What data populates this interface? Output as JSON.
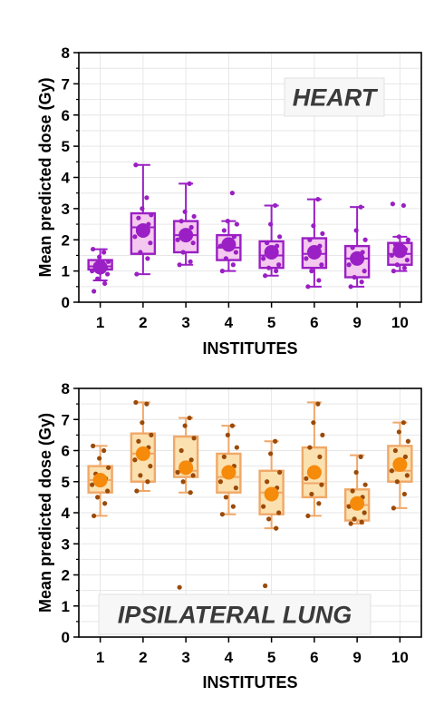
{
  "chart_data": [
    {
      "type": "box",
      "panel_label": "HEART",
      "xlabel": "INSTITUTES",
      "ylabel": "Mean predicted dose (Gy)",
      "ylim": [
        0,
        8
      ],
      "yticks": [
        "0",
        "1",
        "2",
        "3",
        "4",
        "5",
        "6",
        "7",
        "8"
      ],
      "grid": true,
      "colors": {
        "stroke": "#9a1fc4",
        "fill": "#f4c8ef",
        "mean": "#9a1fc4",
        "points": "#9a1fc4"
      },
      "categories": [
        "1",
        "2",
        "3",
        "4",
        "5",
        "6",
        "9",
        "10"
      ],
      "boxes": [
        {
          "whisker_low": 0.7,
          "q1": 1.05,
          "median": 1.15,
          "q3": 1.35,
          "whisker_high": 1.7,
          "mean": 1.12,
          "points": [
            0.35,
            0.6,
            0.75,
            0.9,
            1.0,
            1.05,
            1.1,
            1.2,
            1.3,
            1.45,
            1.6,
            1.7
          ]
        },
        {
          "whisker_low": 0.9,
          "q1": 1.55,
          "median": 2.4,
          "q3": 2.85,
          "whisker_high": 4.4,
          "mean": 2.3,
          "points": [
            0.9,
            1.4,
            1.6,
            1.9,
            2.1,
            2.3,
            2.5,
            2.7,
            2.8,
            3.0,
            3.35,
            4.4
          ]
        },
        {
          "whisker_low": 1.2,
          "q1": 1.6,
          "median": 2.15,
          "q3": 2.6,
          "whisker_high": 3.8,
          "mean": 2.15,
          "points": [
            1.2,
            1.3,
            1.6,
            1.9,
            2.0,
            2.2,
            2.4,
            2.6,
            2.75,
            2.9,
            3.8
          ]
        },
        {
          "whisker_low": 1.0,
          "q1": 1.35,
          "median": 1.75,
          "q3": 2.15,
          "whisker_high": 2.6,
          "mean": 1.85,
          "points": [
            1.0,
            1.2,
            1.4,
            1.6,
            1.8,
            1.95,
            2.1,
            2.3,
            2.5,
            2.6,
            3.5
          ]
        },
        {
          "whisker_low": 0.85,
          "q1": 1.1,
          "median": 1.5,
          "q3": 1.95,
          "whisker_high": 3.1,
          "mean": 1.6,
          "points": [
            0.85,
            1.0,
            1.1,
            1.2,
            1.4,
            1.6,
            1.8,
            1.9,
            2.1,
            2.5,
            3.1
          ]
        },
        {
          "whisker_low": 0.5,
          "q1": 1.1,
          "median": 1.55,
          "q3": 2.05,
          "whisker_high": 3.3,
          "mean": 1.6,
          "points": [
            0.5,
            0.7,
            1.0,
            1.2,
            1.4,
            1.6,
            1.8,
            2.0,
            2.2,
            2.45,
            3.3
          ]
        },
        {
          "whisker_low": 0.5,
          "q1": 0.8,
          "median": 1.4,
          "q3": 1.8,
          "whisker_high": 3.05,
          "mean": 1.4,
          "points": [
            0.5,
            0.65,
            0.8,
            1.0,
            1.2,
            1.4,
            1.6,
            1.75,
            2.0,
            2.3,
            3.05
          ]
        },
        {
          "whisker_low": 1.0,
          "q1": 1.2,
          "median": 1.55,
          "q3": 1.9,
          "whisker_high": 2.1,
          "mean": 1.65,
          "points": [
            1.0,
            1.1,
            1.2,
            1.35,
            1.5,
            1.6,
            1.7,
            1.85,
            2.0,
            2.1,
            3.1,
            3.15
          ]
        }
      ]
    },
    {
      "type": "box",
      "panel_label": "IPSILATERAL LUNG",
      "xlabel": "INSTITUTES",
      "ylabel": "Mean predicted dose (Gy)",
      "ylim": [
        0,
        8
      ],
      "yticks": [
        "0",
        "1",
        "2",
        "3",
        "4",
        "5",
        "6",
        "7",
        "8"
      ],
      "grid": true,
      "colors": {
        "stroke": "#f0a868",
        "fill": "#fbe1b0",
        "mean": "#f58a0b",
        "points": "#9a4a08"
      },
      "categories": [
        "1",
        "2",
        "3",
        "4",
        "5",
        "6",
        "9",
        "10"
      ],
      "boxes": [
        {
          "whisker_low": 3.9,
          "q1": 4.65,
          "median": 5.05,
          "q3": 5.5,
          "whisker_high": 6.15,
          "mean": 5.05,
          "points": [
            3.9,
            4.3,
            4.5,
            4.7,
            4.9,
            5.0,
            5.1,
            5.25,
            5.45,
            5.75,
            6.0,
            6.15
          ]
        },
        {
          "whisker_low": 4.7,
          "q1": 5.0,
          "median": 5.9,
          "q3": 6.55,
          "whisker_high": 7.55,
          "mean": 5.9,
          "points": [
            4.7,
            5.0,
            5.2,
            5.5,
            5.7,
            5.9,
            6.1,
            6.3,
            6.5,
            6.9,
            7.5,
            7.55
          ]
        },
        {
          "whisker_low": 4.65,
          "q1": 5.15,
          "median": 5.35,
          "q3": 6.45,
          "whisker_high": 7.05,
          "mean": 5.45,
          "points": [
            1.6,
            4.65,
            5.0,
            5.2,
            5.3,
            5.5,
            5.7,
            6.0,
            6.4,
            6.8,
            7.05
          ]
        },
        {
          "whisker_low": 3.95,
          "q1": 4.65,
          "median": 5.15,
          "q3": 5.9,
          "whisker_high": 6.8,
          "mean": 5.3,
          "points": [
            3.95,
            4.2,
            4.5,
            4.8,
            5.0,
            5.2,
            5.5,
            5.8,
            6.1,
            6.5,
            6.8
          ]
        },
        {
          "whisker_low": 3.5,
          "q1": 3.95,
          "median": 4.65,
          "q3": 5.35,
          "whisker_high": 6.3,
          "mean": 4.6,
          "points": [
            1.65,
            3.5,
            3.8,
            4.0,
            4.2,
            4.5,
            4.8,
            5.0,
            5.3,
            5.9,
            6.3
          ]
        },
        {
          "whisker_low": 3.9,
          "q1": 4.5,
          "median": 4.95,
          "q3": 6.1,
          "whisker_high": 7.55,
          "mean": 5.3,
          "points": [
            3.9,
            4.3,
            4.6,
            4.9,
            5.1,
            5.4,
            5.8,
            6.1,
            6.5,
            6.9,
            7.5
          ]
        },
        {
          "whisker_low": 3.65,
          "q1": 3.75,
          "median": 4.25,
          "q3": 4.75,
          "whisker_high": 5.85,
          "mean": 4.3,
          "points": [
            3.65,
            3.7,
            3.8,
            4.0,
            4.2,
            4.35,
            4.5,
            4.7,
            4.9,
            5.3,
            5.8
          ]
        },
        {
          "whisker_low": 4.15,
          "q1": 5.0,
          "median": 5.35,
          "q3": 6.15,
          "whisker_high": 6.9,
          "mean": 5.55,
          "points": [
            4.15,
            4.6,
            5.0,
            5.2,
            5.35,
            5.5,
            5.8,
            6.0,
            6.3,
            6.6,
            6.9
          ]
        }
      ]
    }
  ]
}
